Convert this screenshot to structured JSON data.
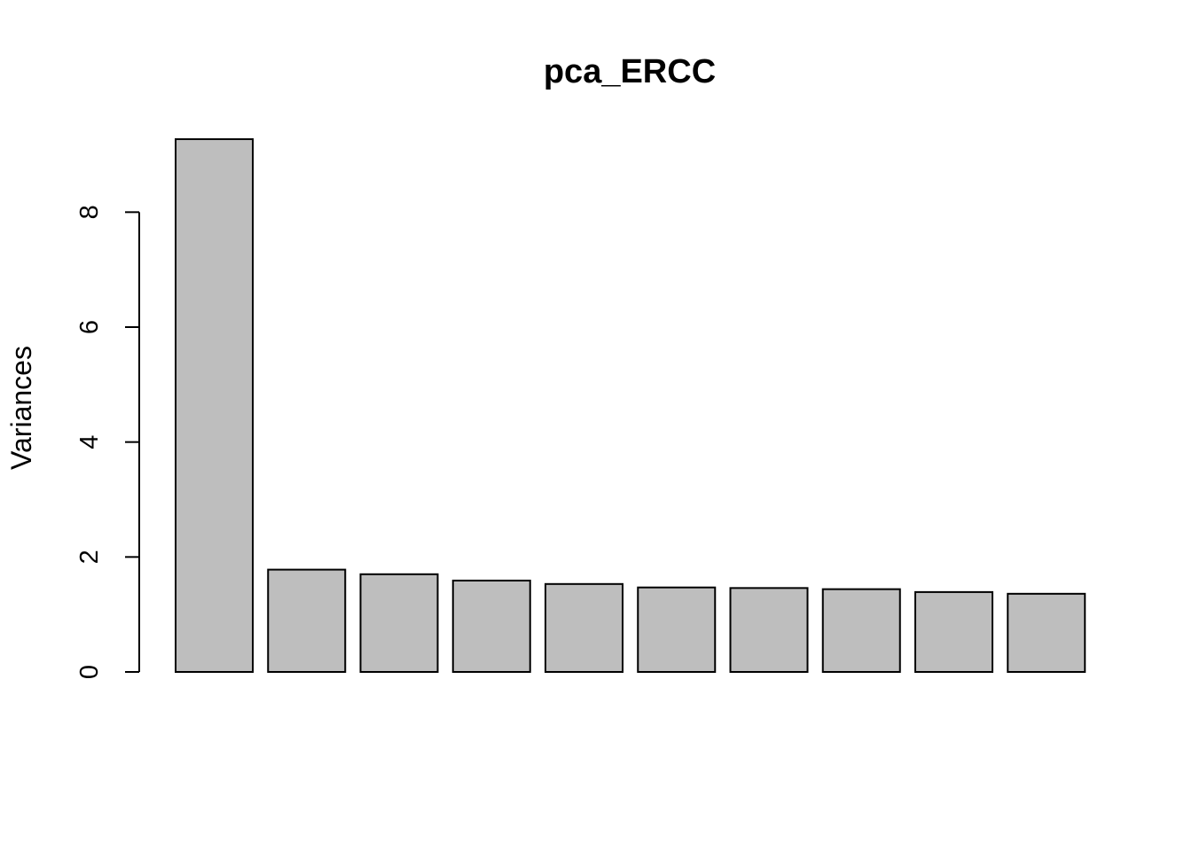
{
  "chart_data": {
    "type": "bar",
    "title": "pca_ERCC",
    "xlabel": "",
    "ylabel": "Variances",
    "categories": [
      "",
      "",
      "",
      "",
      "",
      "",
      "",
      "",
      "",
      ""
    ],
    "values": [
      9.27,
      1.78,
      1.7,
      1.59,
      1.53,
      1.47,
      1.46,
      1.44,
      1.39,
      1.36
    ],
    "ylim": [
      0,
      9.27
    ],
    "yticks": [
      0,
      2,
      4,
      6,
      8
    ],
    "bar_color": "#bebebe",
    "border_color": "#000000",
    "grid": false,
    "legend": "none"
  }
}
